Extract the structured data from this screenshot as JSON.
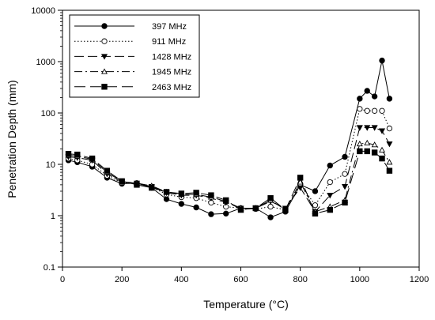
{
  "chart_data": {
    "type": "line",
    "title": "",
    "xlabel": "Temperature (°C)",
    "ylabel": "Penetration Depth (mm)",
    "x_scale": "linear",
    "y_scale": "log",
    "xlim": [
      0,
      1200
    ],
    "ylim": [
      0.1,
      10000
    ],
    "x_ticks": [
      0,
      200,
      400,
      600,
      800,
      1000,
      1200
    ],
    "y_ticks": [
      0.1,
      1,
      10,
      100,
      1000,
      10000
    ],
    "x_tick_labels": [
      "0",
      "200",
      "400",
      "600",
      "800",
      "1000",
      "1200"
    ],
    "y_tick_labels": [
      "0.1",
      "1",
      "10",
      "100",
      "1000",
      "10000"
    ],
    "grid": false,
    "legend_position": "top-left",
    "x": [
      20,
      50,
      100,
      150,
      200,
      250,
      300,
      350,
      400,
      450,
      500,
      550,
      600,
      650,
      700,
      750,
      800,
      850,
      900,
      950,
      1000,
      1025,
      1050,
      1075,
      1100
    ],
    "series": [
      {
        "name": "397 MHz",
        "marker": "filled-circle",
        "line_style": "solid",
        "values": [
          12,
          11,
          9,
          5.5,
          4.2,
          4.3,
          3.5,
          2.1,
          1.7,
          1.45,
          1.07,
          1.1,
          1.4,
          1.4,
          0.93,
          1.2,
          4.0,
          3.0,
          9.5,
          14,
          190,
          270,
          210,
          1050,
          190
        ]
      },
      {
        "name": "911 MHz",
        "marker": "open-circle",
        "line_style": "dotted",
        "values": [
          13,
          12,
          10,
          6,
          4.4,
          4.2,
          3.6,
          2.6,
          2.3,
          2.2,
          1.8,
          1.5,
          1.4,
          1.35,
          1.5,
          1.3,
          4.2,
          1.6,
          4.5,
          6.5,
          120,
          110,
          110,
          110,
          50
        ]
      },
      {
        "name": "1428 MHz",
        "marker": "filled-triangle-down",
        "line_style": "long-dash",
        "values": [
          14,
          13.5,
          12,
          6.5,
          4.5,
          4.3,
          3.7,
          2.8,
          2.5,
          2.5,
          2.2,
          1.8,
          1.4,
          1.4,
          1.9,
          1.4,
          3.5,
          1.2,
          2.5,
          3.7,
          52,
          52,
          52,
          45,
          25
        ]
      },
      {
        "name": "1945 MHz",
        "marker": "open-triangle-up",
        "line_style": "dash-dot",
        "values": [
          15,
          14.5,
          12.5,
          7,
          4.6,
          4.3,
          3.8,
          2.9,
          2.6,
          2.6,
          2.3,
          1.9,
          1.4,
          1.4,
          2.0,
          1.3,
          4.5,
          1.2,
          1.5,
          2.0,
          25,
          26,
          24,
          19,
          11
        ]
      },
      {
        "name": "2463 MHz",
        "marker": "filled-square",
        "line_style": "dashed",
        "values": [
          16,
          15.5,
          13,
          7.5,
          4.7,
          4.0,
          3.5,
          2.9,
          2.7,
          2.8,
          2.5,
          2.0,
          1.3,
          1.4,
          2.2,
          1.3,
          5.5,
          1.1,
          1.3,
          1.8,
          18,
          18,
          17,
          13,
          7.5
        ]
      }
    ]
  }
}
